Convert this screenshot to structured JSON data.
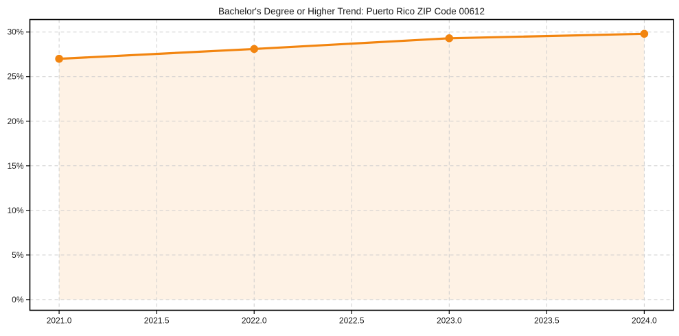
{
  "page": {
    "background": "#ffffff"
  },
  "chart_data": {
    "type": "line",
    "title": "Bachelor's Degree or Higher Trend: Puerto Rico ZIP Code 00612",
    "x": [
      2021,
      2022,
      2023,
      2024
    ],
    "values": [
      27.0,
      28.1,
      29.3,
      29.8
    ],
    "unit": "%",
    "xlabel": "",
    "ylabel": "",
    "xlim": [
      2020.85,
      2024.15
    ],
    "ylim": [
      -1.2,
      31.4
    ],
    "x_ticks": [
      2021.0,
      2021.5,
      2022.0,
      2022.5,
      2023.0,
      2023.5,
      2024.0
    ],
    "x_tick_labels": [
      "2021.0",
      "2021.5",
      "2022.0",
      "2022.5",
      "2023.0",
      "2023.5",
      "2024.0"
    ],
    "y_ticks": [
      0,
      5,
      10,
      15,
      20,
      25,
      30
    ],
    "y_tick_labels": [
      "0%",
      "5%",
      "10%",
      "15%",
      "20%",
      "25%",
      "30%"
    ],
    "grid": true,
    "grid_style": "dashed",
    "legend_position": "none",
    "line_color": "#f28510",
    "marker_color": "#f28510",
    "fill_color": "rgba(242,133,16,0.11)",
    "grid_color": "#cdcdcd",
    "axis_color": "#000000",
    "marker": "circle",
    "fill_to_zero": true
  }
}
